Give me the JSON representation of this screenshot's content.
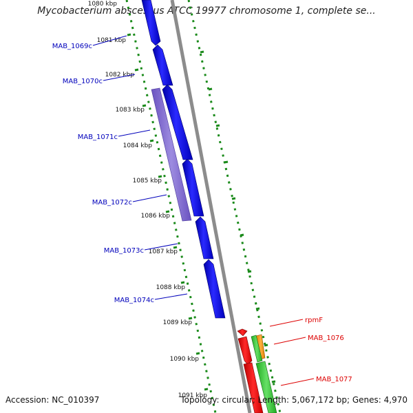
{
  "title": "Mycobacterium abscessus ATCC 19977 chromosome 1, complete se...",
  "footer": {
    "accession": "Accession: NC_010397",
    "summary": "Topology: circular; Length: 5,067,172 bp; Genes: 4,970"
  },
  "colors": {
    "tick_green": "#1a8a1a",
    "backbone_gray": "#8c8c8c",
    "gene_blue": "#0000ee",
    "gene_purple": "#7b64cc",
    "gene_red": "#ee0000",
    "gene_green": "#33cc33",
    "gene_orange": "#ff9900",
    "label_blue": "#0000bb",
    "label_red": "#dd0000"
  },
  "ticks": [
    "1080 kbp",
    "1081 kbp",
    "1082 kbp",
    "1083 kbp",
    "1084 kbp",
    "1085 kbp",
    "1086 kbp",
    "1087 kbp",
    "1088 kbp",
    "1089 kbp",
    "1090 kbp",
    "1091 kbp"
  ],
  "genes_left": [
    "MAB_1069c",
    "MAB_1070c",
    "MAB_1071c",
    "MAB_1072c",
    "MAB_1073c",
    "MAB_1074c"
  ],
  "genes_right": [
    "rpmF",
    "MAB_1076",
    "MAB_1077"
  ]
}
